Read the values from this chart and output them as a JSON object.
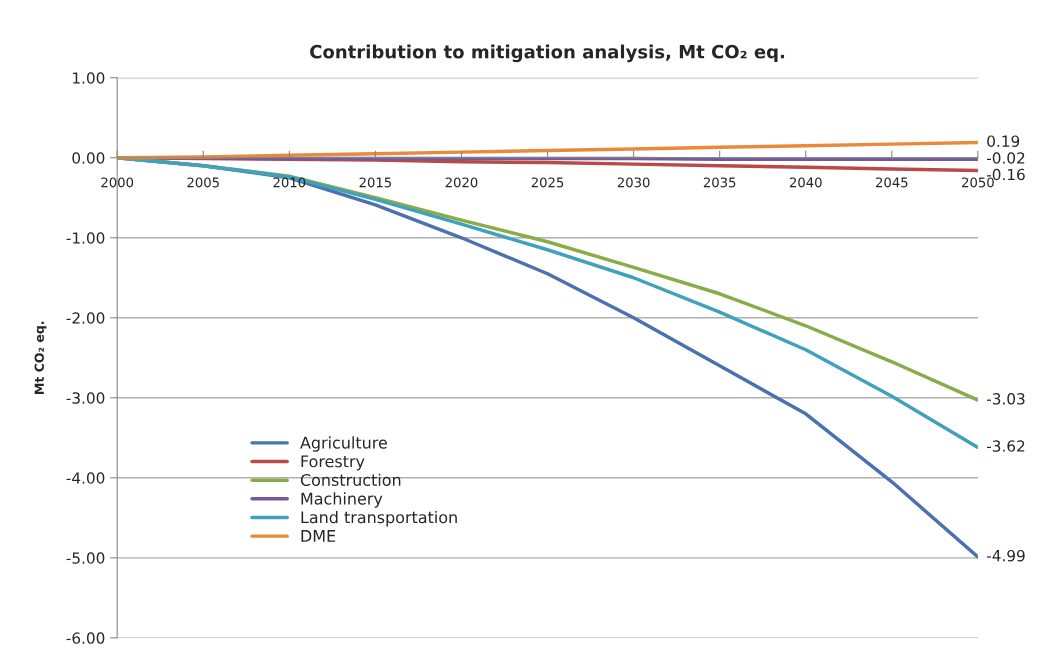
{
  "chart_data": {
    "type": "line",
    "title": "Contribution to mitigation analysis, Mt CO₂ eq.",
    "ylabel": "Mt CO₂ eq.",
    "x": [
      2000,
      2005,
      2010,
      2015,
      2020,
      2025,
      2030,
      2035,
      2040,
      2045,
      2050
    ],
    "series": [
      {
        "name": "Agriculture",
        "color": "#4a71b0",
        "values": [
          0,
          -0.1,
          -0.25,
          -0.59,
          -1.0,
          -1.45,
          -2.0,
          -2.6,
          -3.2,
          -4.05,
          -4.99
        ],
        "value_labels": [
          null,
          null,
          null,
          null,
          null,
          null,
          null,
          null,
          null,
          null,
          "-4.99"
        ]
      },
      {
        "name": "Forestry",
        "color": "#b84a47",
        "values": [
          0,
          -0.01,
          -0.02,
          -0.03,
          -0.05,
          -0.06,
          -0.08,
          -0.1,
          -0.12,
          -0.14,
          -0.16
        ],
        "value_labels": [
          null,
          null,
          null,
          null,
          null,
          null,
          null,
          null,
          null,
          null,
          "-0.16"
        ]
      },
      {
        "name": "Construction",
        "color": "#8aac48",
        "values": [
          0,
          -0.1,
          -0.23,
          -0.5,
          -0.78,
          -1.05,
          -1.37,
          -1.7,
          -2.1,
          -2.55,
          -3.03
        ],
        "value_labels": [
          null,
          null,
          null,
          null,
          null,
          null,
          null,
          null,
          null,
          null,
          "-3.03"
        ]
      },
      {
        "name": "Machinery",
        "color": "#73599a",
        "values": [
          0,
          0,
          -0.01,
          -0.01,
          -0.01,
          -0.01,
          -0.01,
          -0.02,
          -0.02,
          -0.02,
          -0.02
        ],
        "value_labels": [
          null,
          null,
          null,
          null,
          null,
          null,
          null,
          null,
          null,
          null,
          "-0.02"
        ]
      },
      {
        "name": "Land transportation",
        "color": "#3fa1bb",
        "values": [
          0,
          -0.1,
          -0.24,
          -0.52,
          -0.83,
          -1.15,
          -1.5,
          -1.93,
          -2.4,
          -2.98,
          -3.62
        ],
        "value_labels": [
          null,
          null,
          null,
          null,
          null,
          null,
          null,
          null,
          null,
          null,
          "-3.62"
        ]
      },
      {
        "name": "DME",
        "color": "#e98a3a",
        "values": [
          0,
          0.01,
          0.03,
          0.05,
          0.07,
          0.09,
          0.11,
          0.13,
          0.15,
          0.17,
          0.19
        ],
        "value_labels": [
          null,
          null,
          null,
          null,
          null,
          null,
          null,
          null,
          null,
          null,
          "0.19"
        ]
      }
    ],
    "xlim": [
      2000,
      2050
    ],
    "xticks": [
      2000,
      2005,
      2010,
      2015,
      2020,
      2025,
      2030,
      2035,
      2040,
      2045,
      2050
    ],
    "ylim": [
      -6,
      1
    ],
    "yticks": [
      {
        "value": 1,
        "label": "1.00"
      },
      {
        "value": 0,
        "label": "0.00"
      },
      {
        "value": -1,
        "label": "-1.00"
      },
      {
        "value": -2,
        "label": "-2.00"
      },
      {
        "value": -3,
        "label": "-3.00"
      },
      {
        "value": -4,
        "label": "-4.00"
      },
      {
        "value": -5,
        "label": "-5.00"
      },
      {
        "value": -6,
        "label": "-6.00"
      }
    ],
    "grid": "y",
    "legend": "bottom left",
    "marker": "none",
    "line_style": "solid"
  }
}
